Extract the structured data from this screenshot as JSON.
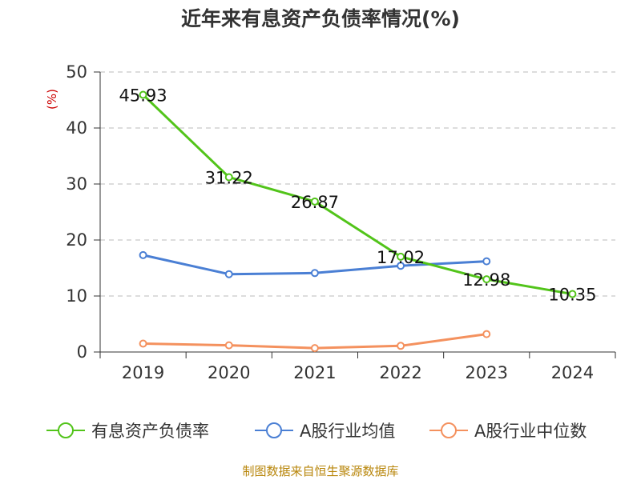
{
  "chart_data": {
    "type": "line",
    "title": "近年来有息资产负债率情况(%)",
    "ylabel": "(%)",
    "categories": [
      "2019",
      "2020",
      "2021",
      "2022",
      "2023",
      "2024"
    ],
    "ylim": [
      0,
      50
    ],
    "yticks": [
      0,
      10,
      20,
      30,
      40,
      50
    ],
    "grid": true,
    "legend_position": "bottom",
    "series": [
      {
        "name": "有息资产负债率",
        "color": "#52c41a",
        "values": [
          45.93,
          31.22,
          26.87,
          17.02,
          12.98,
          10.35
        ],
        "show_labels": true
      },
      {
        "name": "A股行业均值",
        "color": "#4a7fd4",
        "values": [
          17.3,
          13.9,
          14.1,
          15.4,
          16.2,
          null
        ],
        "show_labels": false
      },
      {
        "name": "A股行业中位数",
        "color": "#f4915e",
        "values": [
          1.5,
          1.2,
          0.7,
          1.1,
          3.2,
          null
        ],
        "show_labels": false
      }
    ]
  },
  "source": "制图数据来自恒生聚源数据库"
}
